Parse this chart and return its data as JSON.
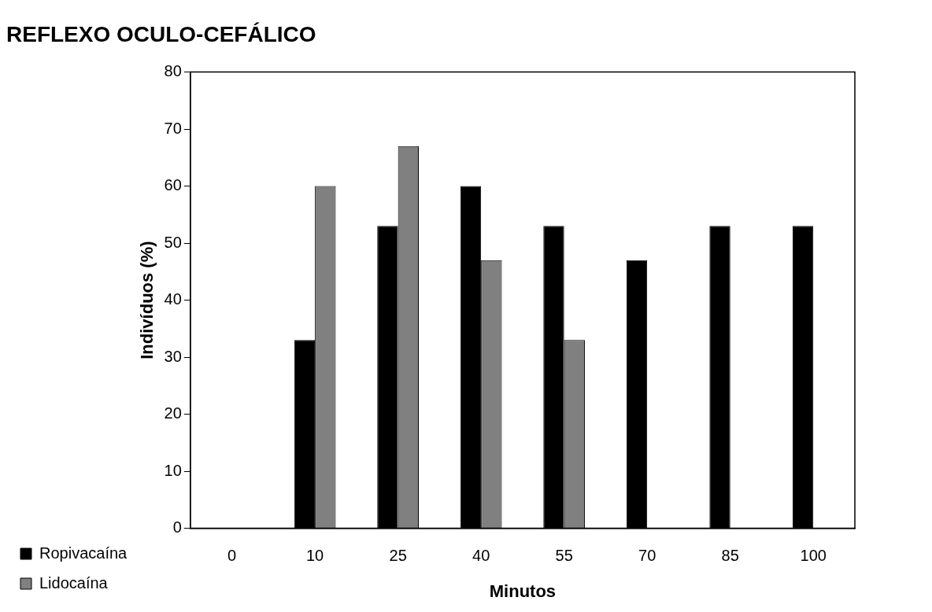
{
  "chart_data": {
    "type": "bar",
    "title": "REFLEXO OCULO-CEFÁLICO",
    "xlabel": "Minutos",
    "ylabel": "Indivíduos (%)",
    "categories": [
      "0",
      "10",
      "25",
      "40",
      "55",
      "70",
      "85",
      "100"
    ],
    "series": [
      {
        "name": "Ropivacaína",
        "color": "#000000",
        "values": [
          0,
          33,
          53,
          60,
          53,
          47,
          53,
          53
        ]
      },
      {
        "name": "Lidocaína",
        "color": "#808080",
        "values": [
          0,
          60,
          67,
          47,
          33,
          0,
          0,
          0
        ]
      }
    ],
    "ylim": [
      0,
      80
    ],
    "yticks": [
      0,
      10,
      20,
      30,
      40,
      50,
      60,
      70,
      80
    ],
    "grid": false,
    "legend": "bottom left"
  }
}
